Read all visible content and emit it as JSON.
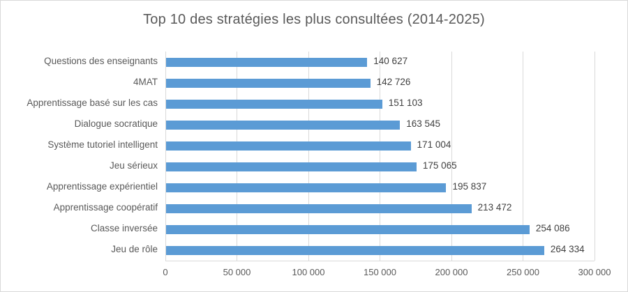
{
  "chart_data": {
    "type": "bar",
    "orientation": "horizontal",
    "title": "Top 10 des stratégies les plus consultées (2014-2025)",
    "categories": [
      "Questions des enseignants",
      "4MAT",
      "Apprentissage basé sur les cas",
      "Dialogue socratique",
      "Système tutoriel intelligent",
      "Jeu sérieux",
      "Apprentissage expérientiel",
      "Apprentissage coopératif",
      "Classe inversée",
      "Jeu de rôle"
    ],
    "values": [
      140627,
      142726,
      151103,
      163545,
      171004,
      175065,
      195837,
      213472,
      254086,
      264334
    ],
    "value_labels": [
      "140 627",
      "142 726",
      "151 103",
      "163 545",
      "171 004",
      "175 065",
      "195 837",
      "213 472",
      "254 086",
      "264 334"
    ],
    "xlabel": "",
    "ylabel": "",
    "xlim": [
      0,
      300000
    ],
    "x_ticks": [
      {
        "value": 0,
        "label": "0"
      },
      {
        "value": 50000,
        "label": "50 000"
      },
      {
        "value": 100000,
        "label": "100 000"
      },
      {
        "value": 150000,
        "label": "150 000"
      },
      {
        "value": 200000,
        "label": "200 000"
      },
      {
        "value": 250000,
        "label": "250 000"
      },
      {
        "value": 300000,
        "label": "300 000"
      }
    ],
    "grid": true,
    "legend": "none",
    "bar_color": "#5b9bd5",
    "gridline_color": "#d9d9d9",
    "text_color": "#595959"
  }
}
